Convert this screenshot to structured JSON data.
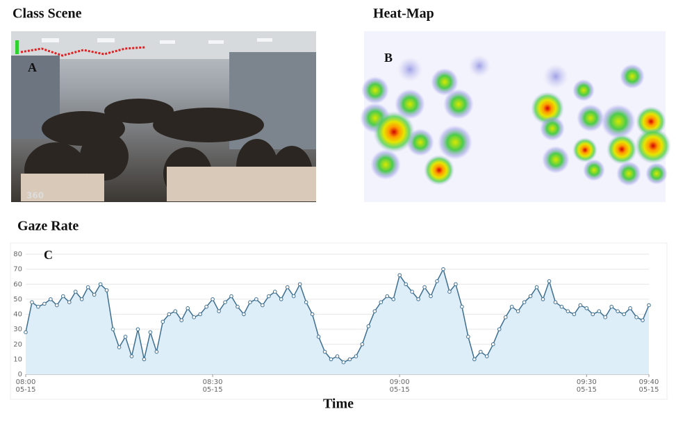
{
  "panels": {
    "scene": {
      "title": "Class Scene",
      "letter": "A",
      "watermark": "360"
    },
    "heatmap": {
      "title": "Heat-Map",
      "letter": "B"
    }
  },
  "chart_data": {
    "type": "line",
    "title": "Gaze Rate",
    "letter": "C",
    "x_label": "Time",
    "color": "#3d6e8f",
    "fill": "#ddeef9",
    "grid": true,
    "x": [
      "08:00",
      "08:01",
      "08:02",
      "08:03",
      "08:04",
      "08:05",
      "08:06",
      "08:07",
      "08:08",
      "08:09",
      "08:10",
      "08:11",
      "08:12",
      "08:13",
      "08:14",
      "08:15",
      "08:16",
      "08:17",
      "08:18",
      "08:19",
      "08:20",
      "08:21",
      "08:22",
      "08:23",
      "08:24",
      "08:25",
      "08:26",
      "08:27",
      "08:28",
      "08:29",
      "08:30",
      "08:31",
      "08:32",
      "08:33",
      "08:34",
      "08:35",
      "08:36",
      "08:37",
      "08:38",
      "08:39",
      "08:40",
      "08:41",
      "08:42",
      "08:43",
      "08:44",
      "08:45",
      "08:46",
      "08:47",
      "08:48",
      "08:49",
      "08:50",
      "08:51",
      "08:52",
      "08:53",
      "08:54",
      "08:55",
      "08:56",
      "08:57",
      "08:58",
      "08:59",
      "09:00",
      "09:01",
      "09:02",
      "09:03",
      "09:04",
      "09:05",
      "09:06",
      "09:07",
      "09:08",
      "09:09",
      "09:10",
      "09:11",
      "09:12",
      "09:13",
      "09:14",
      "09:15",
      "09:16",
      "09:17",
      "09:18",
      "09:19",
      "09:20",
      "09:21",
      "09:22",
      "09:23",
      "09:24",
      "09:25",
      "09:26",
      "09:27",
      "09:28",
      "09:29",
      "09:30",
      "09:31",
      "09:32",
      "09:33",
      "09:34",
      "09:35",
      "09:36",
      "09:37",
      "09:38",
      "09:39",
      "09:40"
    ],
    "values": [
      28,
      48,
      45,
      47,
      50,
      46,
      52,
      48,
      55,
      50,
      58,
      53,
      60,
      56,
      30,
      18,
      25,
      12,
      30,
      10,
      28,
      15,
      35,
      40,
      42,
      36,
      44,
      38,
      40,
      45,
      50,
      42,
      48,
      52,
      45,
      40,
      48,
      50,
      46,
      52,
      55,
      50,
      58,
      52,
      60,
      48,
      40,
      25,
      15,
      10,
      12,
      8,
      10,
      12,
      20,
      32,
      42,
      48,
      52,
      50,
      66,
      60,
      55,
      50,
      58,
      52,
      62,
      70,
      55,
      60,
      45,
      25,
      10,
      15,
      12,
      20,
      30,
      38,
      45,
      42,
      48,
      52,
      58,
      50,
      62,
      48,
      45,
      42,
      40,
      46,
      44,
      40,
      42,
      38,
      45,
      42,
      40,
      44,
      38,
      36,
      46
    ],
    "xlim": [
      "08:00",
      "09:40"
    ],
    "xticks": [
      "08:00",
      "08:30",
      "09:00",
      "09:30",
      "09:40"
    ],
    "x_tick_date": "05-15",
    "ylim": [
      0,
      80
    ],
    "yticks": [
      0,
      10,
      20,
      30,
      40,
      50,
      60,
      70,
      80
    ]
  }
}
